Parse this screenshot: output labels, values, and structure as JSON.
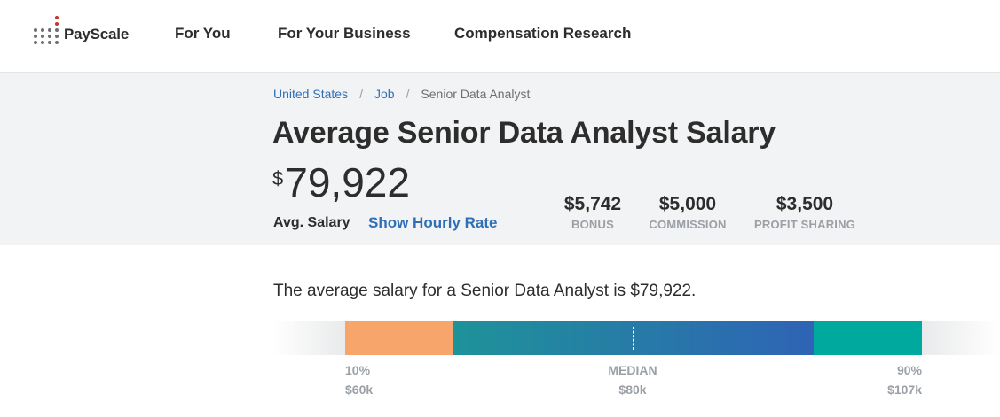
{
  "header": {
    "logo_text": "PayScale",
    "nav": [
      "For You",
      "For Your Business",
      "Compensation Research"
    ]
  },
  "breadcrumb": {
    "items": [
      "United States",
      "Job"
    ],
    "current": "Senior Data Analyst",
    "separator": "/"
  },
  "hero": {
    "title": "Average Senior Data Analyst Salary",
    "currency": "$",
    "salary": "79,922",
    "avg_label": "Avg. Salary",
    "hourly_link": "Show Hourly Rate",
    "extras": [
      {
        "value": "$5,742",
        "label": "BONUS"
      },
      {
        "value": "$5,000",
        "label": "COMMISSION"
      },
      {
        "value": "$3,500",
        "label": "PROFIT SHARING"
      }
    ]
  },
  "summary": "The average salary for a Senior Data Analyst is $79,922.",
  "salary_range": {
    "ticks": [
      {
        "label": "10%",
        "value": "$60k"
      },
      {
        "label": "MEDIAN",
        "value": "$80k"
      },
      {
        "label": "90%",
        "value": "$107k"
      }
    ]
  },
  "colors": {
    "link": "#2e6fb7",
    "hero_bg": "#f2f3f4",
    "bar_low": "#f7a56a",
    "bar_mid_start": "#1e9399",
    "bar_mid_end": "#2f63b5",
    "bar_high": "#00a99d",
    "muted": "#9aa0a6"
  }
}
